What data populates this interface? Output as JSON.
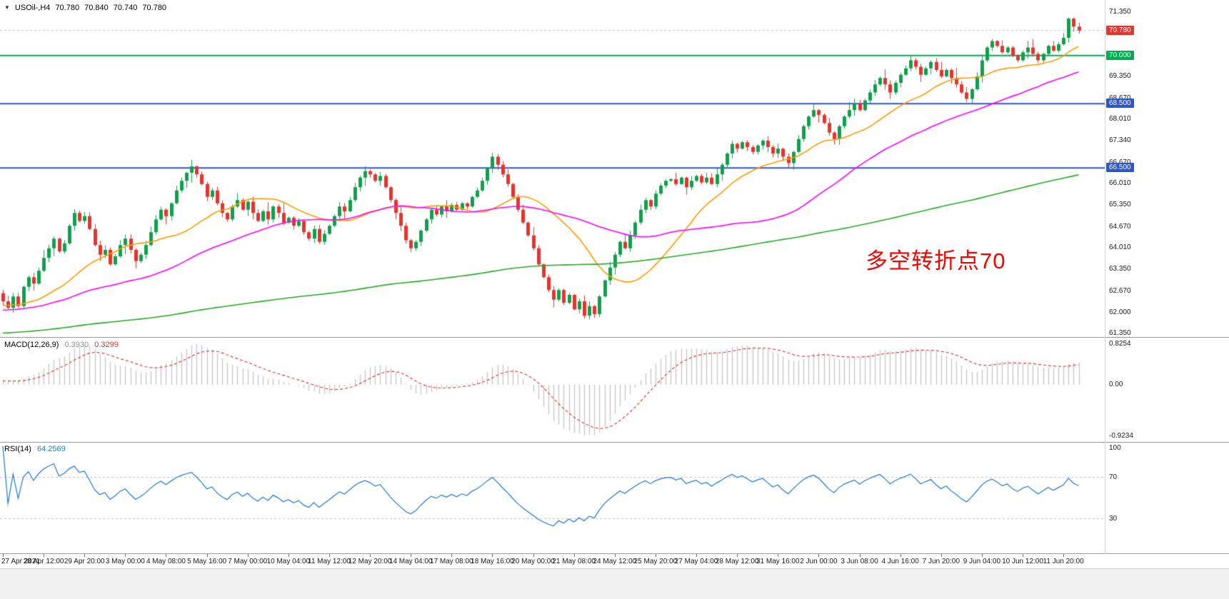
{
  "header": {
    "collapse_icon": "▼",
    "symbol": "USOil-,H4",
    "open": "70.780",
    "high": "70.840",
    "low": "70.740",
    "close": "70.780"
  },
  "main_chart": {
    "annotation": {
      "text": "多空转折点70",
      "color": "#ff0000"
    },
    "axis_labels": [
      {
        "label": "71.350",
        "price": 71.35
      },
      {
        "label": "69.350",
        "price": 69.35
      },
      {
        "label": "68.670",
        "price": 68.67
      },
      {
        "label": "68.010",
        "price": 68.01
      },
      {
        "label": "67.340",
        "price": 67.34
      },
      {
        "label": "66.670",
        "price": 66.67
      },
      {
        "label": "66.010",
        "price": 66.01
      },
      {
        "label": "65.350",
        "price": 65.35
      },
      {
        "label": "64.670",
        "price": 64.67
      },
      {
        "label": "64.010",
        "price": 64.01
      },
      {
        "label": "63.350",
        "price": 63.35
      },
      {
        "label": "62.670",
        "price": 62.67
      },
      {
        "label": "62.000",
        "price": 62.0
      },
      {
        "label": "61.350",
        "price": 61.35
      }
    ],
    "badges": [
      {
        "label": "70.780",
        "price": 70.78,
        "color": "#e8352c",
        "type": "current-price"
      },
      {
        "label": "70.000",
        "price": 70.0,
        "color": "#00b050",
        "type": "horizontal-line"
      },
      {
        "label": "68.500",
        "price": 68.5,
        "color": "#2f55cc",
        "type": "horizontal-line"
      },
      {
        "label": "66.500",
        "price": 66.5,
        "color": "#2f55cc",
        "type": "horizontal-line"
      }
    ],
    "hlines": [
      {
        "price": 70.0,
        "color": "#00b050"
      },
      {
        "price": 68.5,
        "color": "#2f55cc"
      },
      {
        "price": 66.5,
        "color": "#2f55cc"
      }
    ],
    "bid_line": {
      "price": 70.78,
      "color": "#c0c0c0"
    }
  },
  "chart_data": {
    "type": "candlestick",
    "symbol": "USOil-",
    "timeframe": "H4",
    "y_range": [
      61.35,
      71.35
    ],
    "x_range": [
      "27 Apr 2021",
      "11 Jun 2021 20:00"
    ],
    "candle_count": 212,
    "first_open": 62.6,
    "jitter_seed": 11,
    "up_color": "#0fa04c",
    "down_color": "#e8332c",
    "closes": [
      62.35,
      62.15,
      62.5,
      62.2,
      62.8,
      63.1,
      62.9,
      63.3,
      63.7,
      64.0,
      64.3,
      63.9,
      64.15,
      64.7,
      65.1,
      64.85,
      65.0,
      64.6,
      64.1,
      63.8,
      63.95,
      63.5,
      63.75,
      64.1,
      64.3,
      63.95,
      63.6,
      63.8,
      64.1,
      64.5,
      64.9,
      65.2,
      65.0,
      65.4,
      65.8,
      66.1,
      66.35,
      66.55,
      66.3,
      66.0,
      65.6,
      65.8,
      65.4,
      65.1,
      64.9,
      65.3,
      65.5,
      65.2,
      65.45,
      65.1,
      64.85,
      65.15,
      64.9,
      65.3,
      65.1,
      64.8,
      64.95,
      64.7,
      64.85,
      64.5,
      64.3,
      64.6,
      64.2,
      64.45,
      64.7,
      65.0,
      65.3,
      65.15,
      65.5,
      65.9,
      66.2,
      66.4,
      66.3,
      66.1,
      66.25,
      65.9,
      65.5,
      65.1,
      64.7,
      64.25,
      64.0,
      64.2,
      64.55,
      64.9,
      65.2,
      65.05,
      65.3,
      65.15,
      65.35,
      65.2,
      65.4,
      65.3,
      65.6,
      65.8,
      66.1,
      66.5,
      66.85,
      66.6,
      66.3,
      66.0,
      65.6,
      65.2,
      64.8,
      64.4,
      64.0,
      63.5,
      63.1,
      62.7,
      62.4,
      62.7,
      62.3,
      62.55,
      62.1,
      62.35,
      61.9,
      62.2,
      61.95,
      62.5,
      63.0,
      63.4,
      63.8,
      64.2,
      64.0,
      64.4,
      64.8,
      65.2,
      65.5,
      65.3,
      65.7,
      65.95,
      66.1,
      66.15,
      66.0,
      66.2,
      65.9,
      66.1,
      66.25,
      66.05,
      66.2,
      66.0,
      66.3,
      66.6,
      66.95,
      67.25,
      67.1,
      67.3,
      67.15,
      67.0,
      67.2,
      67.35,
      67.15,
      66.95,
      67.1,
      66.85,
      66.65,
      67.0,
      67.4,
      67.8,
      68.1,
      68.3,
      68.15,
      67.9,
      67.6,
      67.4,
      67.8,
      68.1,
      68.3,
      68.5,
      68.3,
      68.6,
      68.85,
      69.1,
      69.3,
      69.1,
      68.85,
      69.15,
      69.4,
      69.6,
      69.85,
      69.65,
      69.4,
      69.6,
      69.8,
      69.55,
      69.35,
      69.55,
      69.3,
      69.1,
      68.85,
      68.65,
      68.95,
      69.35,
      69.85,
      70.25,
      70.45,
      70.3,
      70.1,
      70.25,
      70.0,
      69.85,
      70.1,
      70.25,
      70.05,
      69.85,
      70.05,
      70.3,
      70.15,
      70.35,
      70.55,
      71.15,
      70.9,
      70.78
    ],
    "moving_averages": [
      {
        "name": "fast-ma",
        "period": 20,
        "color": "#ff9c00"
      },
      {
        "name": "medium-ma",
        "period": 50,
        "color": "#ff00ff"
      },
      {
        "name": "slow-ma",
        "period": 200,
        "color": "#28a828"
      }
    ],
    "macd": {
      "label": "MACD(12,26,9)",
      "value": "0.3930",
      "signal_value": "0.3299",
      "fast": 12,
      "slow": 26,
      "signal": 9,
      "axis": [
        "0.8254",
        "0.00",
        "-0.9234"
      ],
      "hist_color": "#c8c8c8",
      "signal_color": "#e03c3c"
    },
    "rsi": {
      "label": "RSI(14)",
      "value": "64.2569",
      "period": 14,
      "levels": [
        70,
        30
      ],
      "axis": [
        "100",
        "70",
        "30"
      ],
      "color": "#1e76d2",
      "level_color": "#c0c0c0"
    },
    "time_labels": [
      "27 Apr 2021",
      "28 Apr 12:00",
      "29 Apr 20:00",
      "3 May 00:00",
      "4 May 08:00",
      "5 May 16:00",
      "7 May 00:00",
      "10 May 04:00",
      "11 May 12:00",
      "12 May 20:00",
      "14 May 04:00",
      "17 May 08:00",
      "18 May 16:00",
      "20 May 00:00",
      "21 May 08:00",
      "24 May 12:00",
      "25 May 20:00",
      "27 May 04:00",
      "28 May 12:00",
      "31 May 16:00",
      "2 Jun 00:00",
      "3 Jun 08:00",
      "4 Jun 16:00",
      "7 Jun 20:00",
      "9 Jun 04:00",
      "10 Jun 12:00",
      "11 Jun 20:00"
    ]
  }
}
